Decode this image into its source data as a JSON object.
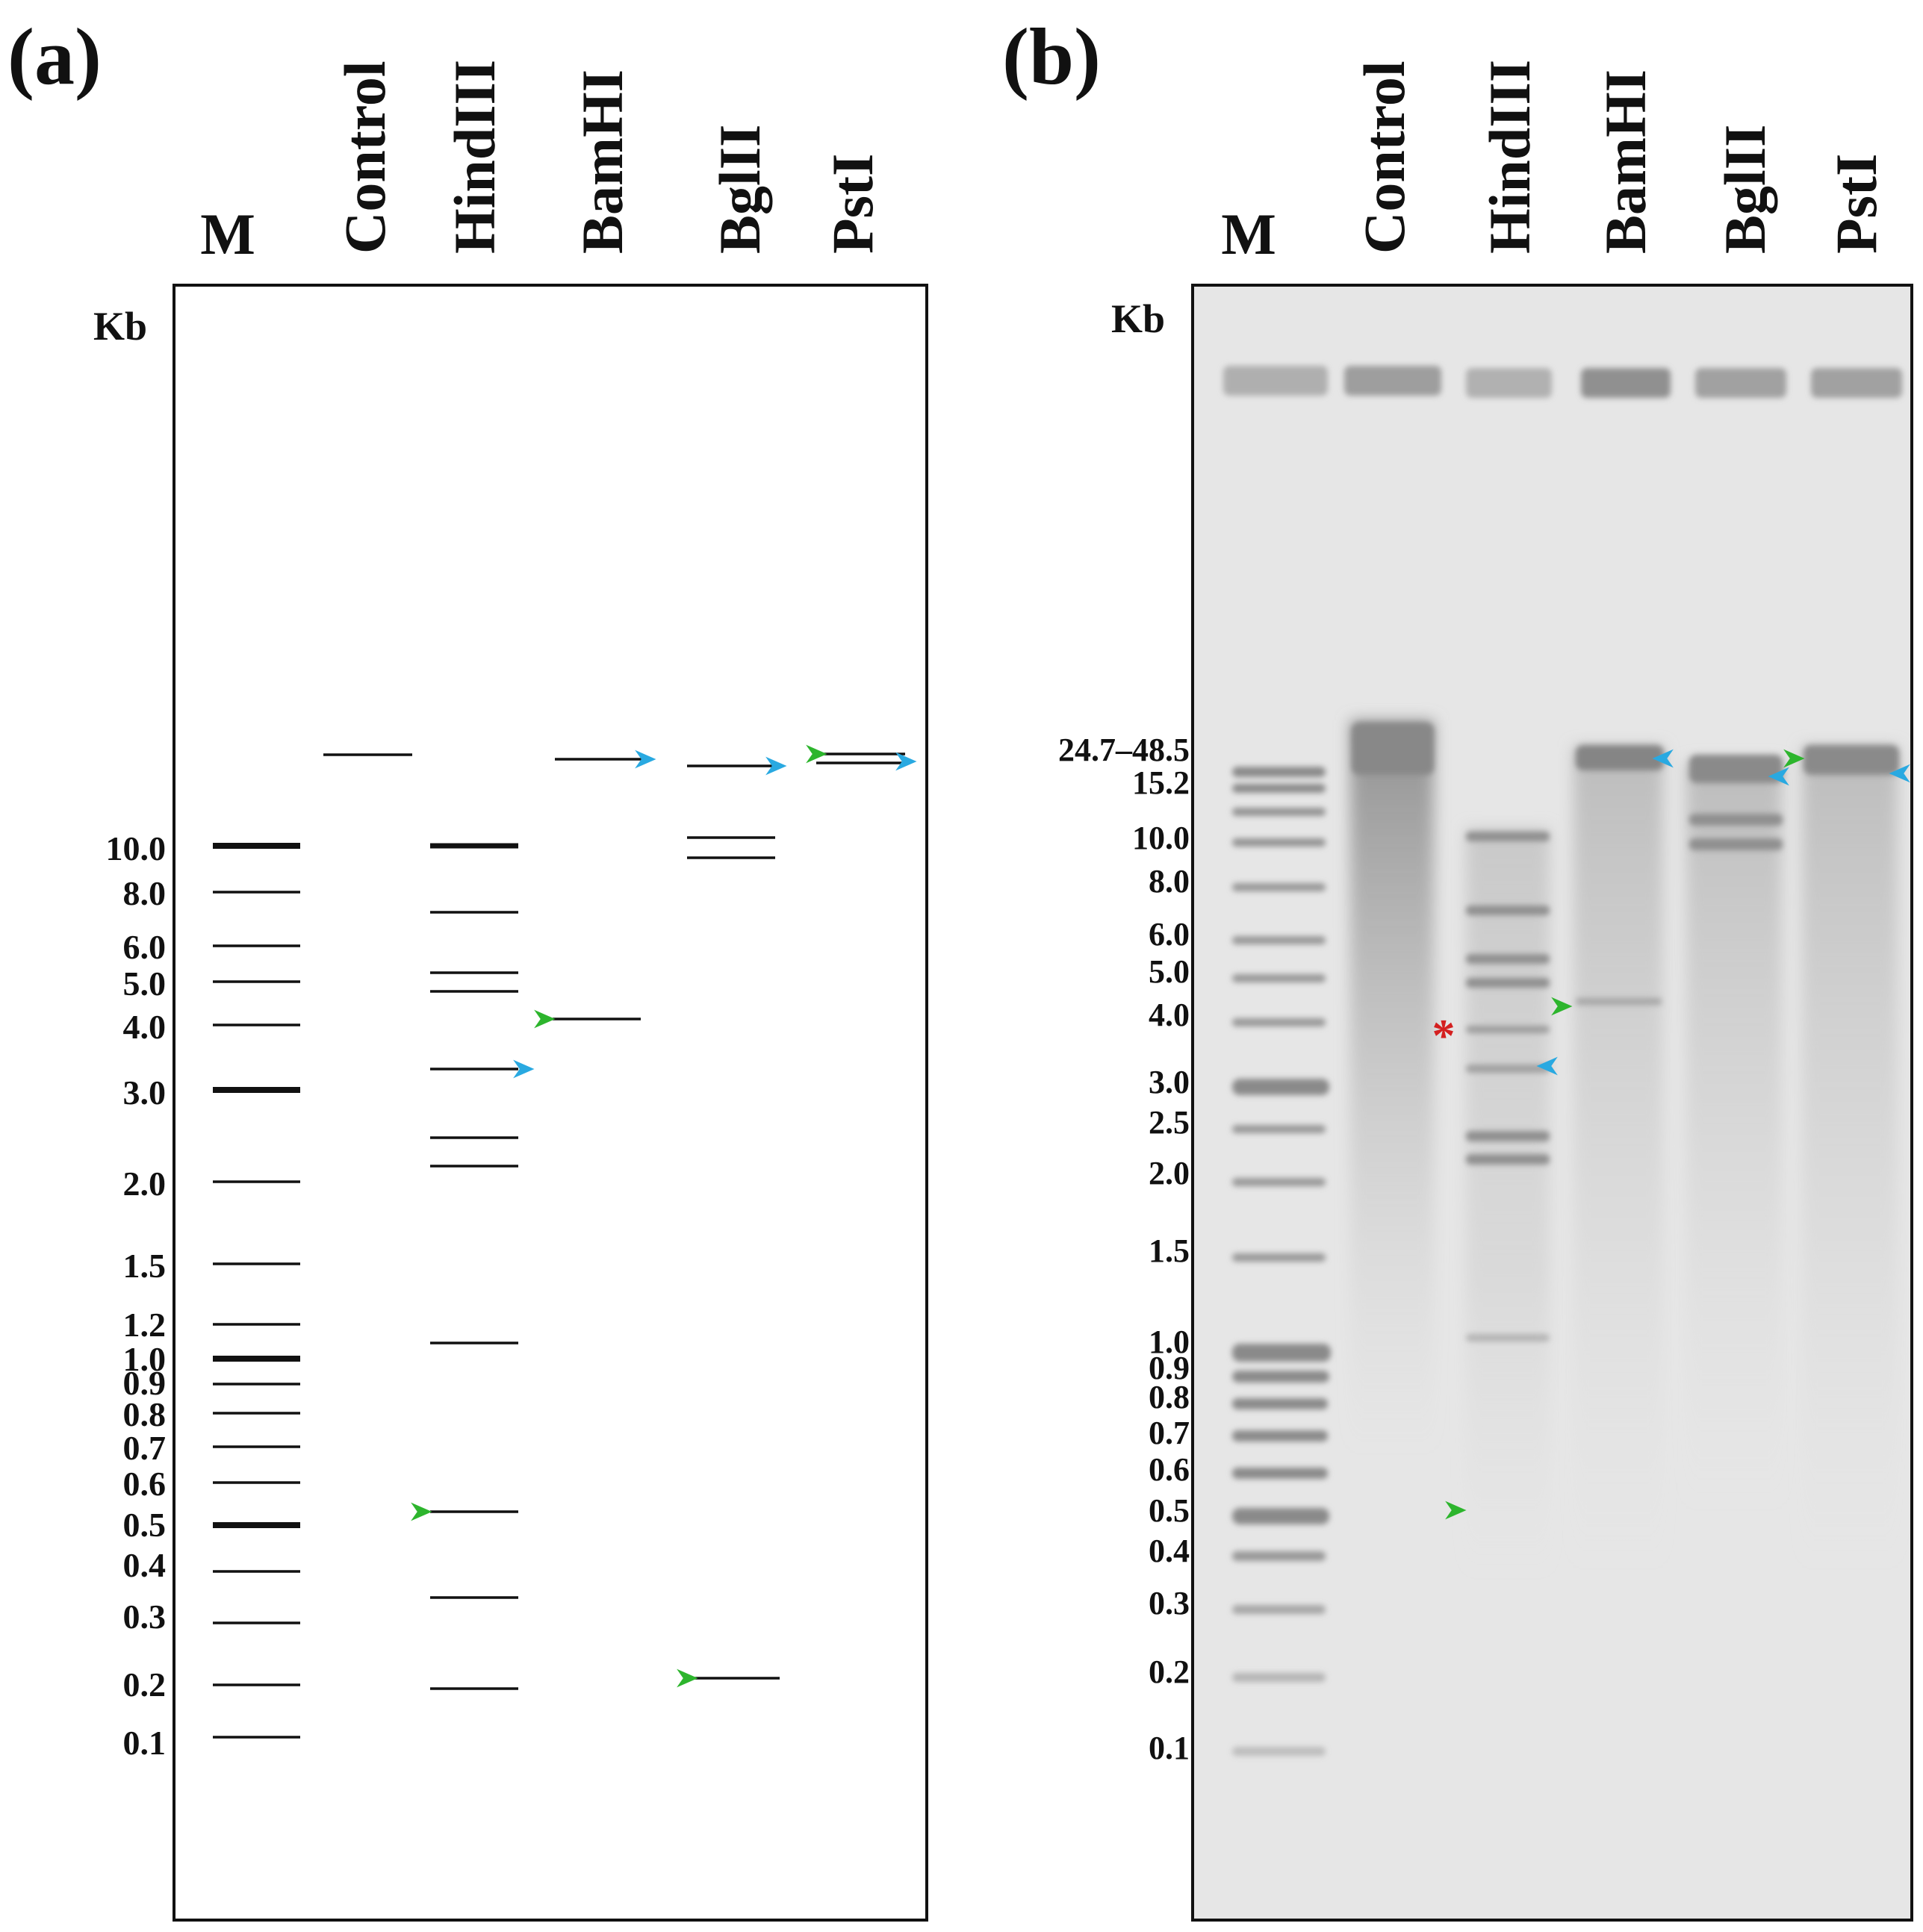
{
  "panel_a": {
    "letter": "(a)",
    "unit": "Kb",
    "lanes": [
      "M",
      "Control",
      "HindIII",
      "BamHI",
      "BglII",
      "PstI"
    ],
    "marker_labels": [
      "10.0",
      "8.0",
      "6.0",
      "5.0",
      "4.0",
      "3.0",
      "2.0",
      "1.5",
      "1.2",
      "1.0",
      "0.9",
      "0.8",
      "0.7",
      "0.6",
      "0.5",
      "0.4",
      "0.3",
      "0.2",
      "0.1"
    ]
  },
  "panel_b": {
    "letter": "(b)",
    "unit": "Kb",
    "lanes": [
      "M",
      "Control",
      "HindIII",
      "BamHI",
      "BglII",
      "PstI"
    ],
    "marker_labels": [
      "24.7–48.5",
      "15.2",
      "10.0",
      "8.0",
      "6.0",
      "5.0",
      "4.0",
      "3.0",
      "2.5",
      "2.0",
      "1.5",
      "1.0",
      "0.9",
      "0.8",
      "0.7",
      "0.6",
      "0.5",
      "0.4",
      "0.3",
      "0.2",
      "0.1"
    ],
    "asterisk": "*"
  },
  "colors": {
    "green_arrow": "#2db52d",
    "blue_arrow": "#29a9e1",
    "asterisk": "#d42020",
    "gel_background": "#e6e6e6"
  }
}
